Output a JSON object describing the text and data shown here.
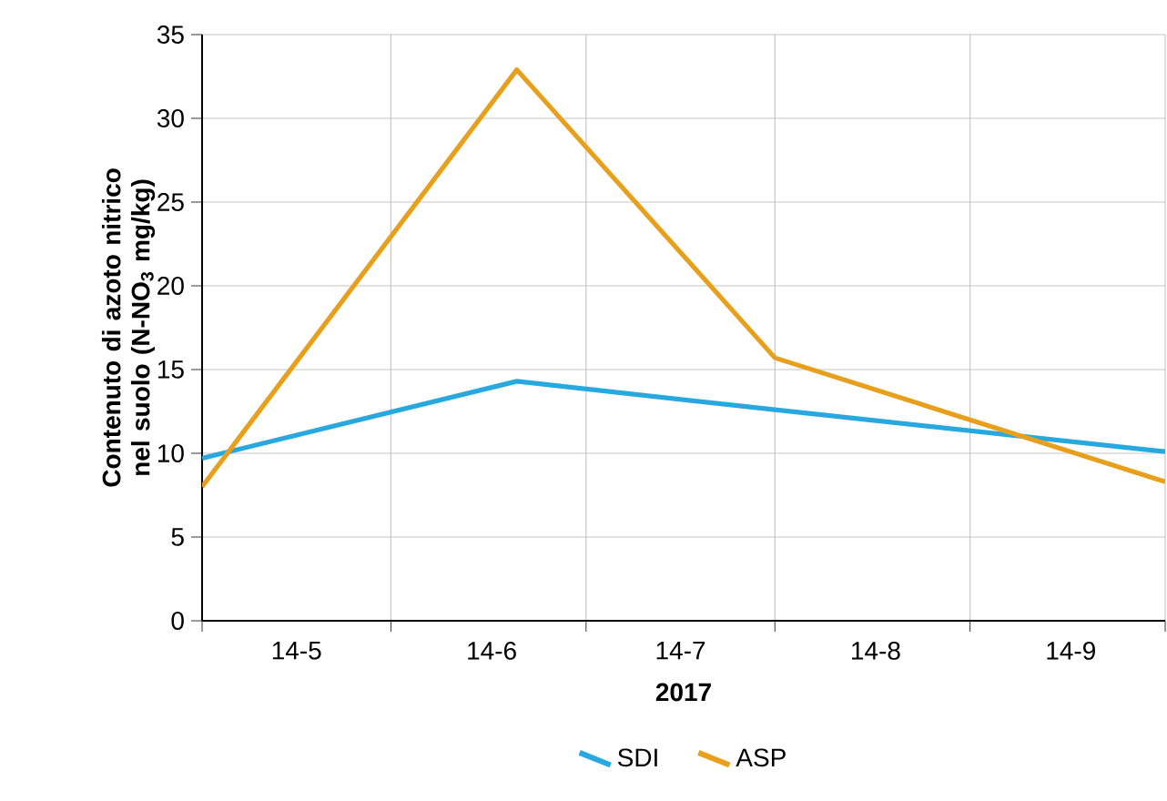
{
  "chart_data": {
    "type": "line",
    "xlabel": "2017",
    "ylabel": "Contenuto di azoto nitrico nel suolo (N-NO$_{3}$ mg/kg)",
    "xlim": [
      "2017-04-29",
      "2017-09-29"
    ],
    "ylim": [
      0,
      35
    ],
    "yticks": [
      0,
      5,
      10,
      15,
      20,
      25,
      30,
      35
    ],
    "xticks": [
      {
        "value": "2017-04-29",
        "label": null
      },
      {
        "value": "2017-05-14",
        "label": "14-5"
      },
      {
        "value": "2017-05-29",
        "label": null
      },
      {
        "value": "2017-06-14",
        "label": "14-6"
      },
      {
        "value": "2017-06-29",
        "label": null
      },
      {
        "value": "2017-07-14",
        "label": "14-7"
      },
      {
        "value": "2017-07-29",
        "label": null
      },
      {
        "value": "2017-08-14",
        "label": "14-8"
      },
      {
        "value": "2017-08-29",
        "label": null
      },
      {
        "value": "2017-09-14",
        "label": "14-9"
      },
      {
        "value": "2017-09-29",
        "label": null
      }
    ],
    "grid": true,
    "legend": "bottom",
    "series": [
      {
        "name": "SDI",
        "color": "#29a8e0",
        "x": [
          "2017-04-29",
          "2017-06-18",
          "2017-07-29",
          "2017-09-29"
        ],
        "values": [
          9.7,
          14.3,
          12.6,
          10.1
        ]
      },
      {
        "name": "ASP",
        "color": "#e8a01c",
        "x": [
          "2017-04-29",
          "2017-06-18",
          "2017-07-29",
          "2017-09-29"
        ],
        "values": [
          8.0,
          32.9,
          15.7,
          8.3
        ]
      }
    ]
  }
}
